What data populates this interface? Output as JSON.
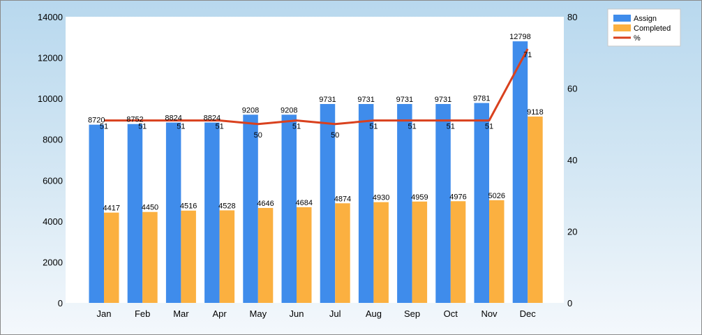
{
  "chart_data": {
    "type": "bar",
    "categories": [
      "Jan",
      "Feb",
      "Mar",
      "Apr",
      "May",
      "Jun",
      "Jul",
      "Aug",
      "Sep",
      "Oct",
      "Nov",
      "Dec"
    ],
    "series": [
      {
        "name": "Assign",
        "type": "bar",
        "axis": "left",
        "color": "#3f8ceb",
        "values": [
          8720,
          8752,
          8824,
          8824,
          9208,
          9208,
          9731,
          9731,
          9731,
          9731,
          9781,
          12798
        ]
      },
      {
        "name": "Completed",
        "type": "bar",
        "axis": "left",
        "color": "#fbb040",
        "values": [
          4417,
          4450,
          4516,
          4528,
          4646,
          4684,
          4874,
          4930,
          4959,
          4976,
          5026,
          9118
        ]
      },
      {
        "name": "%",
        "type": "line",
        "axis": "right",
        "color": "#d9411e",
        "values": [
          51,
          51,
          51,
          51,
          50,
          51,
          50,
          51,
          51,
          51,
          51,
          71
        ]
      }
    ],
    "ylim": [
      0,
      14000
    ],
    "yticks": [
      0,
      2000,
      4000,
      6000,
      8000,
      10000,
      12000,
      14000
    ],
    "y2lim": [
      0,
      80
    ],
    "y2ticks": [
      0,
      20,
      40,
      60,
      80
    ],
    "legend_position": "top-right",
    "grid": false
  }
}
